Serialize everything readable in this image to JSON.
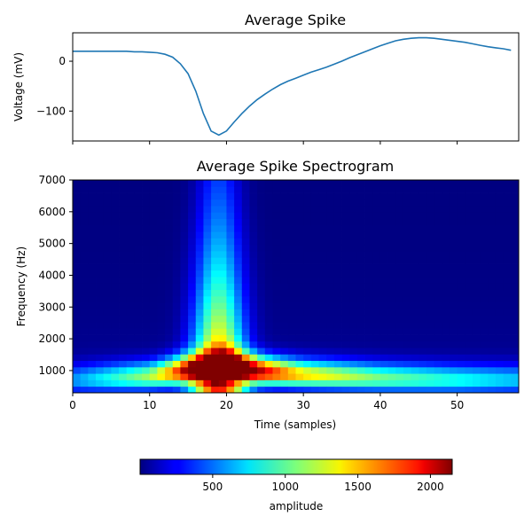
{
  "chart_data": [
    {
      "type": "line",
      "title": "Average Spike",
      "xlabel": "",
      "ylabel": "Voltage (mV)",
      "xlim": [
        0,
        58
      ],
      "ylim": [
        -160,
        57
      ],
      "yticks": [
        0,
        -100
      ],
      "xticks": [
        0,
        10,
        20,
        30,
        40,
        50
      ],
      "show_xtick_labels": false,
      "grid": false,
      "color": "#1f77b4",
      "series": [
        {
          "x": [
            0,
            1,
            2,
            3,
            4,
            5,
            6,
            7,
            8,
            9,
            10,
            11,
            12,
            13,
            14,
            15,
            16,
            17,
            18,
            19,
            20,
            21,
            22,
            23,
            24,
            25,
            26,
            27,
            28,
            29,
            30,
            31,
            32,
            33,
            34,
            35,
            36,
            37,
            38,
            39,
            40,
            41,
            42,
            43,
            44,
            45,
            46,
            47,
            48,
            49,
            50,
            51,
            52,
            53,
            54,
            55,
            56,
            57
          ],
          "y": [
            20,
            20,
            20,
            20,
            20,
            20,
            20,
            20,
            19,
            19,
            18,
            17,
            14,
            8,
            -5,
            -25,
            -60,
            -105,
            -140,
            -148,
            -140,
            -122,
            -105,
            -90,
            -77,
            -66,
            -56,
            -47,
            -40,
            -34,
            -28,
            -22,
            -17,
            -12,
            -6,
            0,
            7,
            13,
            19,
            25,
            31,
            36,
            41,
            44,
            46,
            47,
            47,
            46,
            44,
            42,
            40,
            38,
            35,
            32,
            29,
            27,
            25,
            22
          ]
        }
      ]
    },
    {
      "type": "heatmap",
      "title": "Average Spike Spectrogram",
      "xlabel": "Time (samples)",
      "ylabel": "Frequency (Hz)",
      "xlim": [
        0,
        58
      ],
      "ylim": [
        300,
        7000
      ],
      "xticks": [
        0,
        10,
        20,
        30,
        40,
        50
      ],
      "yticks": [
        1000,
        2000,
        3000,
        4000,
        5000,
        6000,
        7000
      ],
      "colormap": "jet",
      "colorbar": {
        "label": "amplitude",
        "range": [
          0,
          2150
        ],
        "ticks": [
          500,
          1000,
          1500,
          2000
        ],
        "orientation": "horizontal"
      },
      "time_bins": 58,
      "freq_bins": 33,
      "note_model": "Per-bin amplitude estimated from image",
      "peak": {
        "time": 20,
        "frequency_hz": 1100,
        "amplitude": 2150
      },
      "ridge": [
        {
          "time": 0,
          "frequency_hz": 700,
          "amplitude": 520
        },
        {
          "time": 10,
          "frequency_hz": 800,
          "amplitude": 1100
        },
        {
          "time": 15,
          "frequency_hz": 1000,
          "amplitude": 1800
        },
        {
          "time": 20,
          "frequency_hz": 1100,
          "amplitude": 2150
        },
        {
          "time": 25,
          "frequency_hz": 950,
          "amplitude": 1850
        },
        {
          "time": 30,
          "frequency_hz": 850,
          "amplitude": 1350
        },
        {
          "time": 40,
          "frequency_hz": 750,
          "amplitude": 1000
        },
        {
          "time": 50,
          "frequency_hz": 700,
          "amplitude": 800
        },
        {
          "time": 57,
          "frequency_hz": 700,
          "amplitude": 650
        }
      ],
      "burst": {
        "time_center": 19,
        "time_width": 2.5,
        "max_frequency_hz": 7000,
        "amplitude": 900
      }
    }
  ]
}
